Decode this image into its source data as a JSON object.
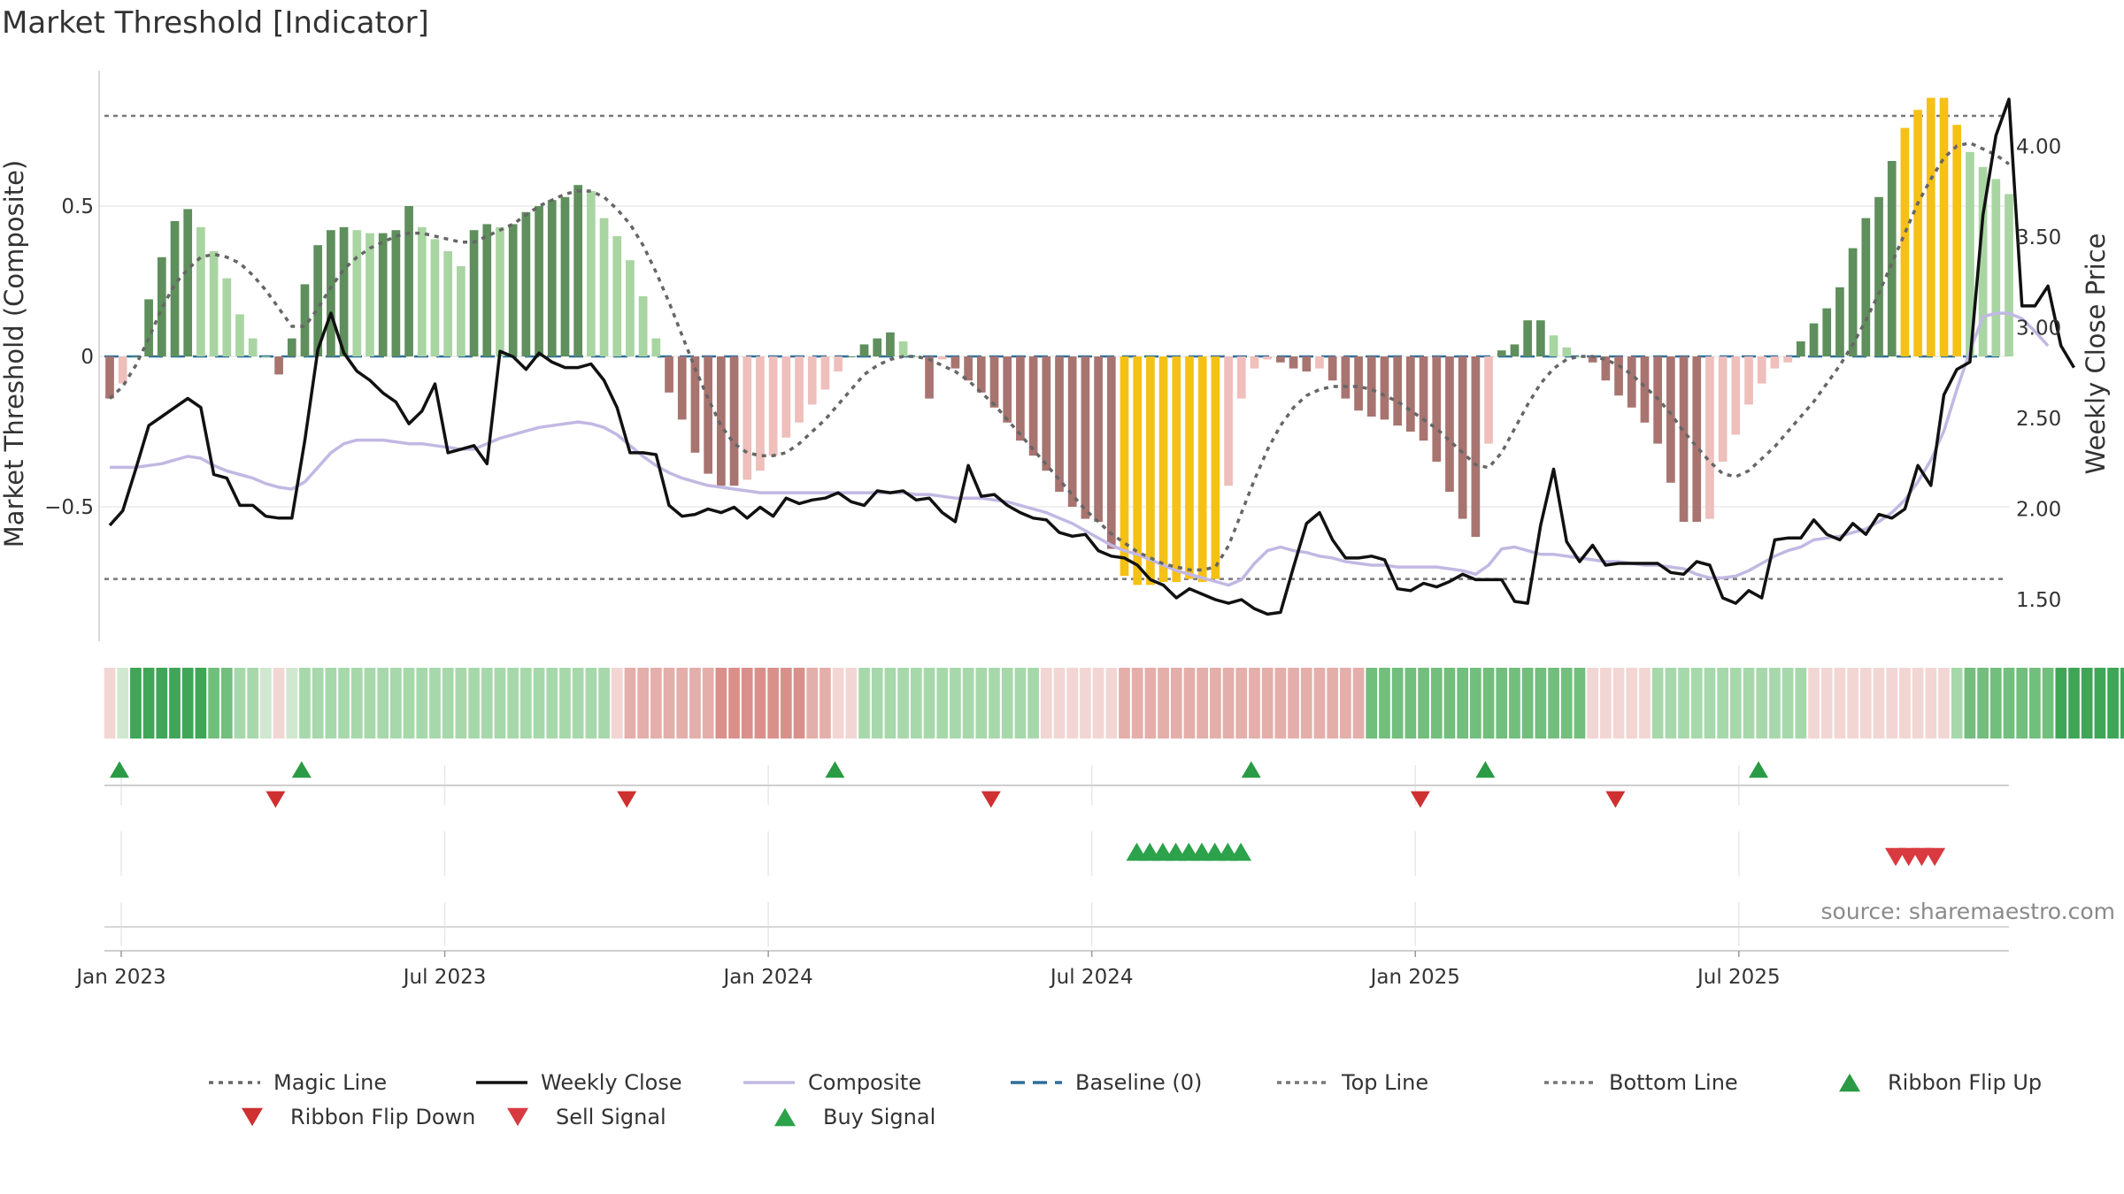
{
  "title": "Market Threshold [Indicator]",
  "source": "source: sharemaestro.com",
  "colors": {
    "strong_up": "#5e8f5c",
    "weak_up": "#a9d5a2",
    "strong_down": "#a87470",
    "weak_down": "#eebfbb",
    "extreme": "#f5c116",
    "close": "#111111",
    "composite": "#c2b8e3",
    "magic": "#666666",
    "baseline": "#2f6e9a",
    "guide": "#777777",
    "buy": "#2ca24a",
    "sell": "#d83a40",
    "flip_up": "#2a9a44",
    "flip_down": "#cf3030"
  },
  "chart_data": {
    "type": "bar",
    "title": "Market Threshold [Indicator]",
    "x_axis": {
      "ticks": [
        "Jan 2023",
        "Jul 2023",
        "Jan 2024",
        "Jul 2024",
        "Jan 2025",
        "Jul 2025"
      ]
    },
    "y_left": {
      "label": "Market Threshold (Composite)",
      "ticks": [
        "0.5",
        "0",
        "−0.5"
      ],
      "range": [
        -0.95,
        0.95
      ]
    },
    "y_right": {
      "label": "Weekly Close Price",
      "ticks": [
        "4.00",
        "3.50",
        "3.00",
        "2.50",
        "2.00",
        "1.50"
      ],
      "range": [
        1.25,
        4.5
      ]
    },
    "top_line": 0.8,
    "bottom_line": -0.74,
    "bars": [
      -0.14,
      -0.09,
      0.0,
      0.19,
      0.33,
      0.45,
      0.49,
      0.43,
      0.35,
      0.26,
      0.14,
      0.06,
      0.0,
      -0.06,
      0.06,
      0.24,
      0.37,
      0.42,
      0.43,
      0.42,
      0.41,
      0.41,
      0.42,
      0.5,
      0.43,
      0.39,
      0.35,
      0.3,
      0.42,
      0.44,
      0.43,
      0.44,
      0.48,
      0.5,
      0.52,
      0.53,
      0.57,
      0.55,
      0.46,
      0.4,
      0.32,
      0.2,
      0.06,
      -0.12,
      -0.21,
      -0.32,
      -0.39,
      -0.43,
      -0.43,
      -0.41,
      -0.38,
      -0.33,
      -0.27,
      -0.22,
      -0.16,
      -0.11,
      -0.05,
      0.0,
      0.04,
      0.06,
      0.08,
      0.05,
      0.0,
      -0.14,
      -0.01,
      -0.04,
      -0.08,
      -0.12,
      -0.17,
      -0.22,
      -0.28,
      -0.33,
      -0.38,
      -0.45,
      -0.5,
      -0.54,
      -0.55,
      -0.64,
      -0.73,
      -0.76,
      -0.76,
      -0.75,
      -0.75,
      -0.74,
      -0.75,
      -0.74,
      -0.43,
      -0.14,
      -0.04,
      -0.01,
      -0.02,
      -0.04,
      -0.05,
      -0.04,
      -0.08,
      -0.14,
      -0.18,
      -0.2,
      -0.21,
      -0.23,
      -0.25,
      -0.28,
      -0.35,
      -0.45,
      -0.54,
      -0.6,
      -0.29,
      0.02,
      0.04,
      0.12,
      0.12,
      0.07,
      0.03,
      0.0,
      -0.02,
      -0.08,
      -0.13,
      -0.17,
      -0.22,
      -0.29,
      -0.42,
      -0.55,
      -0.55,
      -0.54,
      -0.35,
      -0.26,
      -0.16,
      -0.09,
      -0.04,
      -0.02,
      0.05,
      0.11,
      0.16,
      0.23,
      0.36,
      0.46,
      0.53,
      0.65,
      0.76,
      0.82,
      0.86,
      0.86,
      0.77,
      0.68,
      0.63,
      0.59,
      0.54
    ],
    "weekly_close": [
      1.91,
      1.99,
      2.22,
      2.46,
      2.51,
      2.56,
      2.61,
      2.56,
      2.19,
      2.17,
      2.02,
      2.02,
      1.96,
      1.95,
      1.95,
      2.38,
      2.88,
      3.08,
      2.86,
      2.76,
      2.71,
      2.64,
      2.59,
      2.47,
      2.54,
      2.69,
      2.31,
      2.33,
      2.35,
      2.25,
      2.87,
      2.84,
      2.77,
      2.86,
      2.81,
      2.78,
      2.78,
      2.8,
      2.71,
      2.56,
      2.31,
      2.31,
      2.3,
      2.02,
      1.96,
      1.97,
      2.0,
      1.98,
      2.01,
      1.95,
      2.01,
      1.96,
      2.06,
      2.03,
      2.05,
      2.06,
      2.09,
      2.04,
      2.02,
      2.1,
      2.09,
      2.1,
      2.05,
      2.06,
      1.98,
      1.93,
      2.24,
      2.07,
      2.08,
      2.02,
      1.98,
      1.95,
      1.94,
      1.87,
      1.85,
      1.86,
      1.77,
      1.74,
      1.73,
      1.69,
      1.61,
      1.58,
      1.51,
      1.56,
      1.53,
      1.5,
      1.48,
      1.5,
      1.45,
      1.42,
      1.43,
      1.68,
      1.92,
      1.98,
      1.83,
      1.73,
      1.73,
      1.74,
      1.72,
      1.56,
      1.55,
      1.59,
      1.57,
      1.6,
      1.64,
      1.61,
      1.61,
      1.61,
      1.49,
      1.48,
      1.91,
      2.22,
      1.82,
      1.71,
      1.8,
      1.69,
      1.7,
      1.7,
      1.7,
      1.7,
      1.65,
      1.64,
      1.71,
      1.69,
      1.51,
      1.48,
      1.55,
      1.51,
      1.83,
      1.84,
      1.84,
      1.94,
      1.86,
      1.83,
      1.92,
      1.86,
      1.97,
      1.95,
      2.0,
      2.24,
      2.13,
      2.63,
      2.77,
      2.81,
      3.62,
      4.06,
      4.26,
      3.12,
      3.12,
      3.23,
      2.9,
      2.78
    ],
    "composite": [
      2.23,
      2.23,
      2.23,
      2.24,
      2.25,
      2.27,
      2.29,
      2.28,
      2.24,
      2.21,
      2.19,
      2.17,
      2.14,
      2.12,
      2.11,
      2.15,
      2.23,
      2.31,
      2.36,
      2.38,
      2.38,
      2.38,
      2.37,
      2.36,
      2.36,
      2.35,
      2.34,
      2.33,
      2.33,
      2.36,
      2.39,
      2.41,
      2.43,
      2.45,
      2.46,
      2.47,
      2.48,
      2.47,
      2.45,
      2.41,
      2.35,
      2.29,
      2.24,
      2.2,
      2.17,
      2.15,
      2.13,
      2.12,
      2.11,
      2.1,
      2.09,
      2.09,
      2.09,
      2.09,
      2.09,
      2.09,
      2.09,
      2.09,
      2.09,
      2.09,
      2.09,
      2.09,
      2.08,
      2.08,
      2.07,
      2.06,
      2.06,
      2.06,
      2.05,
      2.04,
      2.02,
      2.0,
      1.98,
      1.95,
      1.92,
      1.88,
      1.84,
      1.8,
      1.77,
      1.75,
      1.72,
      1.69,
      1.66,
      1.64,
      1.62,
      1.6,
      1.58,
      1.61,
      1.7,
      1.77,
      1.79,
      1.77,
      1.76,
      1.74,
      1.73,
      1.71,
      1.7,
      1.69,
      1.69,
      1.68,
      1.68,
      1.68,
      1.68,
      1.67,
      1.66,
      1.64,
      1.69,
      1.78,
      1.79,
      1.77,
      1.75,
      1.75,
      1.74,
      1.73,
      1.72,
      1.71,
      1.71,
      1.7,
      1.69,
      1.69,
      1.68,
      1.67,
      1.64,
      1.62,
      1.62,
      1.63,
      1.66,
      1.7,
      1.74,
      1.77,
      1.79,
      1.83,
      1.84,
      1.85,
      1.87,
      1.89,
      1.93,
      1.98,
      2.05,
      2.15,
      2.27,
      2.43,
      2.66,
      2.87,
      3.06,
      3.08,
      3.08,
      3.05,
      2.98,
      2.9
    ],
    "magic_line": [
      -0.14,
      -0.1,
      -0.03,
      0.06,
      0.16,
      0.24,
      0.29,
      0.33,
      0.34,
      0.33,
      0.31,
      0.27,
      0.22,
      0.16,
      0.1,
      0.1,
      0.16,
      0.23,
      0.29,
      0.33,
      0.36,
      0.38,
      0.4,
      0.41,
      0.41,
      0.4,
      0.39,
      0.38,
      0.38,
      0.4,
      0.42,
      0.44,
      0.47,
      0.5,
      0.52,
      0.54,
      0.55,
      0.55,
      0.53,
      0.49,
      0.44,
      0.37,
      0.28,
      0.18,
      0.07,
      -0.04,
      -0.14,
      -0.23,
      -0.29,
      -0.32,
      -0.33,
      -0.33,
      -0.32,
      -0.29,
      -0.25,
      -0.21,
      -0.16,
      -0.11,
      -0.06,
      -0.03,
      -0.01,
      0.0,
      0.0,
      -0.01,
      -0.03,
      -0.05,
      -0.08,
      -0.12,
      -0.16,
      -0.21,
      -0.26,
      -0.31,
      -0.36,
      -0.41,
      -0.46,
      -0.51,
      -0.55,
      -0.59,
      -0.62,
      -0.65,
      -0.67,
      -0.69,
      -0.7,
      -0.71,
      -0.71,
      -0.7,
      -0.63,
      -0.52,
      -0.41,
      -0.31,
      -0.23,
      -0.17,
      -0.13,
      -0.11,
      -0.1,
      -0.1,
      -0.1,
      -0.11,
      -0.13,
      -0.15,
      -0.18,
      -0.21,
      -0.24,
      -0.28,
      -0.32,
      -0.36,
      -0.37,
      -0.32,
      -0.24,
      -0.16,
      -0.09,
      -0.04,
      -0.01,
      0.0,
      0.0,
      -0.01,
      -0.03,
      -0.06,
      -0.1,
      -0.14,
      -0.19,
      -0.25,
      -0.3,
      -0.35,
      -0.39,
      -0.4,
      -0.38,
      -0.34,
      -0.3,
      -0.25,
      -0.2,
      -0.15,
      -0.09,
      -0.03,
      0.04,
      0.12,
      0.21,
      0.31,
      0.41,
      0.51,
      0.59,
      0.66,
      0.7,
      0.71,
      0.69,
      0.67,
      0.64
    ],
    "ribbon_up_levels": [
      -1,
      0,
      3,
      3,
      3,
      3,
      3,
      3,
      2,
      2,
      1,
      1,
      0,
      -1,
      0,
      1,
      1,
      1,
      1,
      1,
      1,
      1,
      1,
      1,
      1,
      1,
      1,
      1,
      1,
      1,
      1,
      1,
      1,
      1,
      1,
      1,
      1,
      1,
      1,
      -1,
      -2,
      -2,
      -2,
      -2,
      -2,
      -2,
      -2,
      -3,
      -3,
      -3,
      -3,
      -3,
      -3,
      -3,
      -2,
      -2,
      -1,
      -1,
      1,
      1,
      1,
      1,
      1,
      1,
      1,
      1,
      1,
      1,
      1,
      1,
      1,
      1,
      -1,
      -1,
      -1,
      -1,
      -1,
      -1,
      -2,
      -2,
      -2,
      -2,
      -2,
      -2,
      -2,
      -2,
      -2,
      -2,
      -2,
      -2,
      -2,
      -2,
      -2,
      -2,
      -2,
      -2,
      -2,
      2,
      2,
      2,
      2,
      2,
      2,
      2,
      2,
      2,
      2,
      2,
      2,
      2,
      2,
      2,
      2,
      2,
      -1,
      -1,
      -1,
      -1,
      -1,
      1,
      1,
      1,
      1,
      1,
      1,
      1,
      1,
      1,
      1,
      1,
      1,
      -1,
      -1,
      -1,
      -1,
      -1,
      -1,
      -1,
      -1,
      -1,
      -1,
      -1,
      1,
      2,
      2,
      2,
      2,
      2,
      2,
      2,
      3,
      3,
      3,
      3,
      3,
      3,
      3,
      3,
      2,
      2,
      2,
      2,
      2,
      2,
      2,
      2
    ],
    "ribbon_flip_up_weeks": [
      0,
      14,
      55,
      87,
      105,
      126
    ],
    "ribbon_flip_down_weeks": [
      12,
      39,
      67,
      100,
      115
    ],
    "buy_signal_weeks": [
      78,
      79,
      80,
      81,
      82,
      83,
      84,
      85,
      86
    ],
    "sell_signal_weeks": [
      136,
      137,
      138,
      139
    ]
  },
  "legend": [
    {
      "label": "Magic Line",
      "icon": "dotted-line"
    },
    {
      "label": "Weekly Close",
      "icon": "solid-line"
    },
    {
      "label": "Composite",
      "icon": "solid-line"
    },
    {
      "label": "Baseline (0)",
      "icon": "dashed-line"
    },
    {
      "label": "Top Line",
      "icon": "dotted-line"
    },
    {
      "label": "Bottom Line",
      "icon": "dotted-line"
    },
    {
      "label": "Ribbon Flip Up",
      "icon": "triangle-up"
    },
    {
      "label": "Ribbon Flip Down",
      "icon": "triangle-down"
    },
    {
      "label": "Sell Signal",
      "icon": "triangle-down"
    },
    {
      "label": "Buy Signal",
      "icon": "triangle-up"
    }
  ]
}
